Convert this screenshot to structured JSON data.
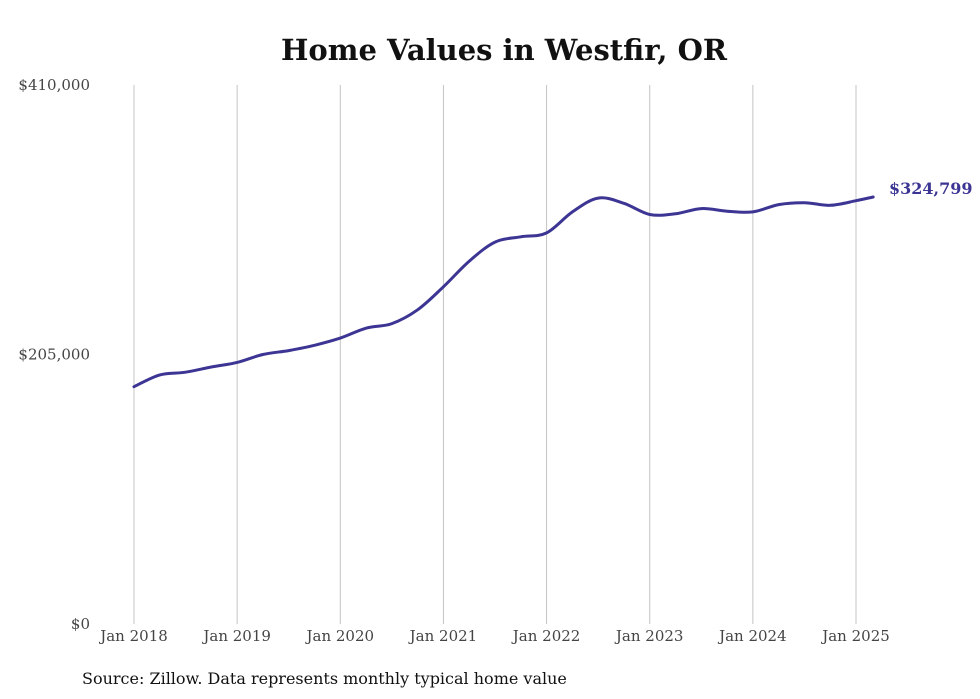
{
  "chart_data": {
    "type": "line",
    "title": "Home Values in Westfir, OR",
    "source": "Source: Zillow. Data represents monthly typical home value",
    "x_ticks": [
      "Jan 2018",
      "Jan 2019",
      "Jan 2020",
      "Jan 2021",
      "Jan 2022",
      "Jan 2023",
      "Jan 2024",
      "Jan 2025"
    ],
    "y_ticks": [
      "$0",
      "$205,000",
      "$410,000"
    ],
    "ylim": [
      0,
      410000
    ],
    "grid": "vertical",
    "end_label": "$324,799",
    "color": "#3c3594",
    "series": [
      {
        "x": [
          "2018-01",
          "2018-04",
          "2018-07",
          "2018-10",
          "2019-01",
          "2019-04",
          "2019-07",
          "2019-10",
          "2020-01",
          "2020-04",
          "2020-07",
          "2020-10",
          "2021-01",
          "2021-04",
          "2021-07",
          "2021-10",
          "2022-01",
          "2022-04",
          "2022-07",
          "2022-10",
          "2023-01",
          "2023-04",
          "2023-07",
          "2023-10",
          "2024-01",
          "2024-04",
          "2024-07",
          "2024-10",
          "2025-01",
          "2025-03"
        ],
        "values": [
          180500,
          189500,
          191500,
          195500,
          199000,
          205000,
          208000,
          212000,
          217500,
          225000,
          228500,
          239000,
          256500,
          276000,
          290500,
          294500,
          297500,
          313500,
          324000,
          320000,
          311500,
          312000,
          316000,
          314000,
          313500,
          319000,
          320500,
          318500,
          322000,
          324799
        ]
      }
    ]
  }
}
